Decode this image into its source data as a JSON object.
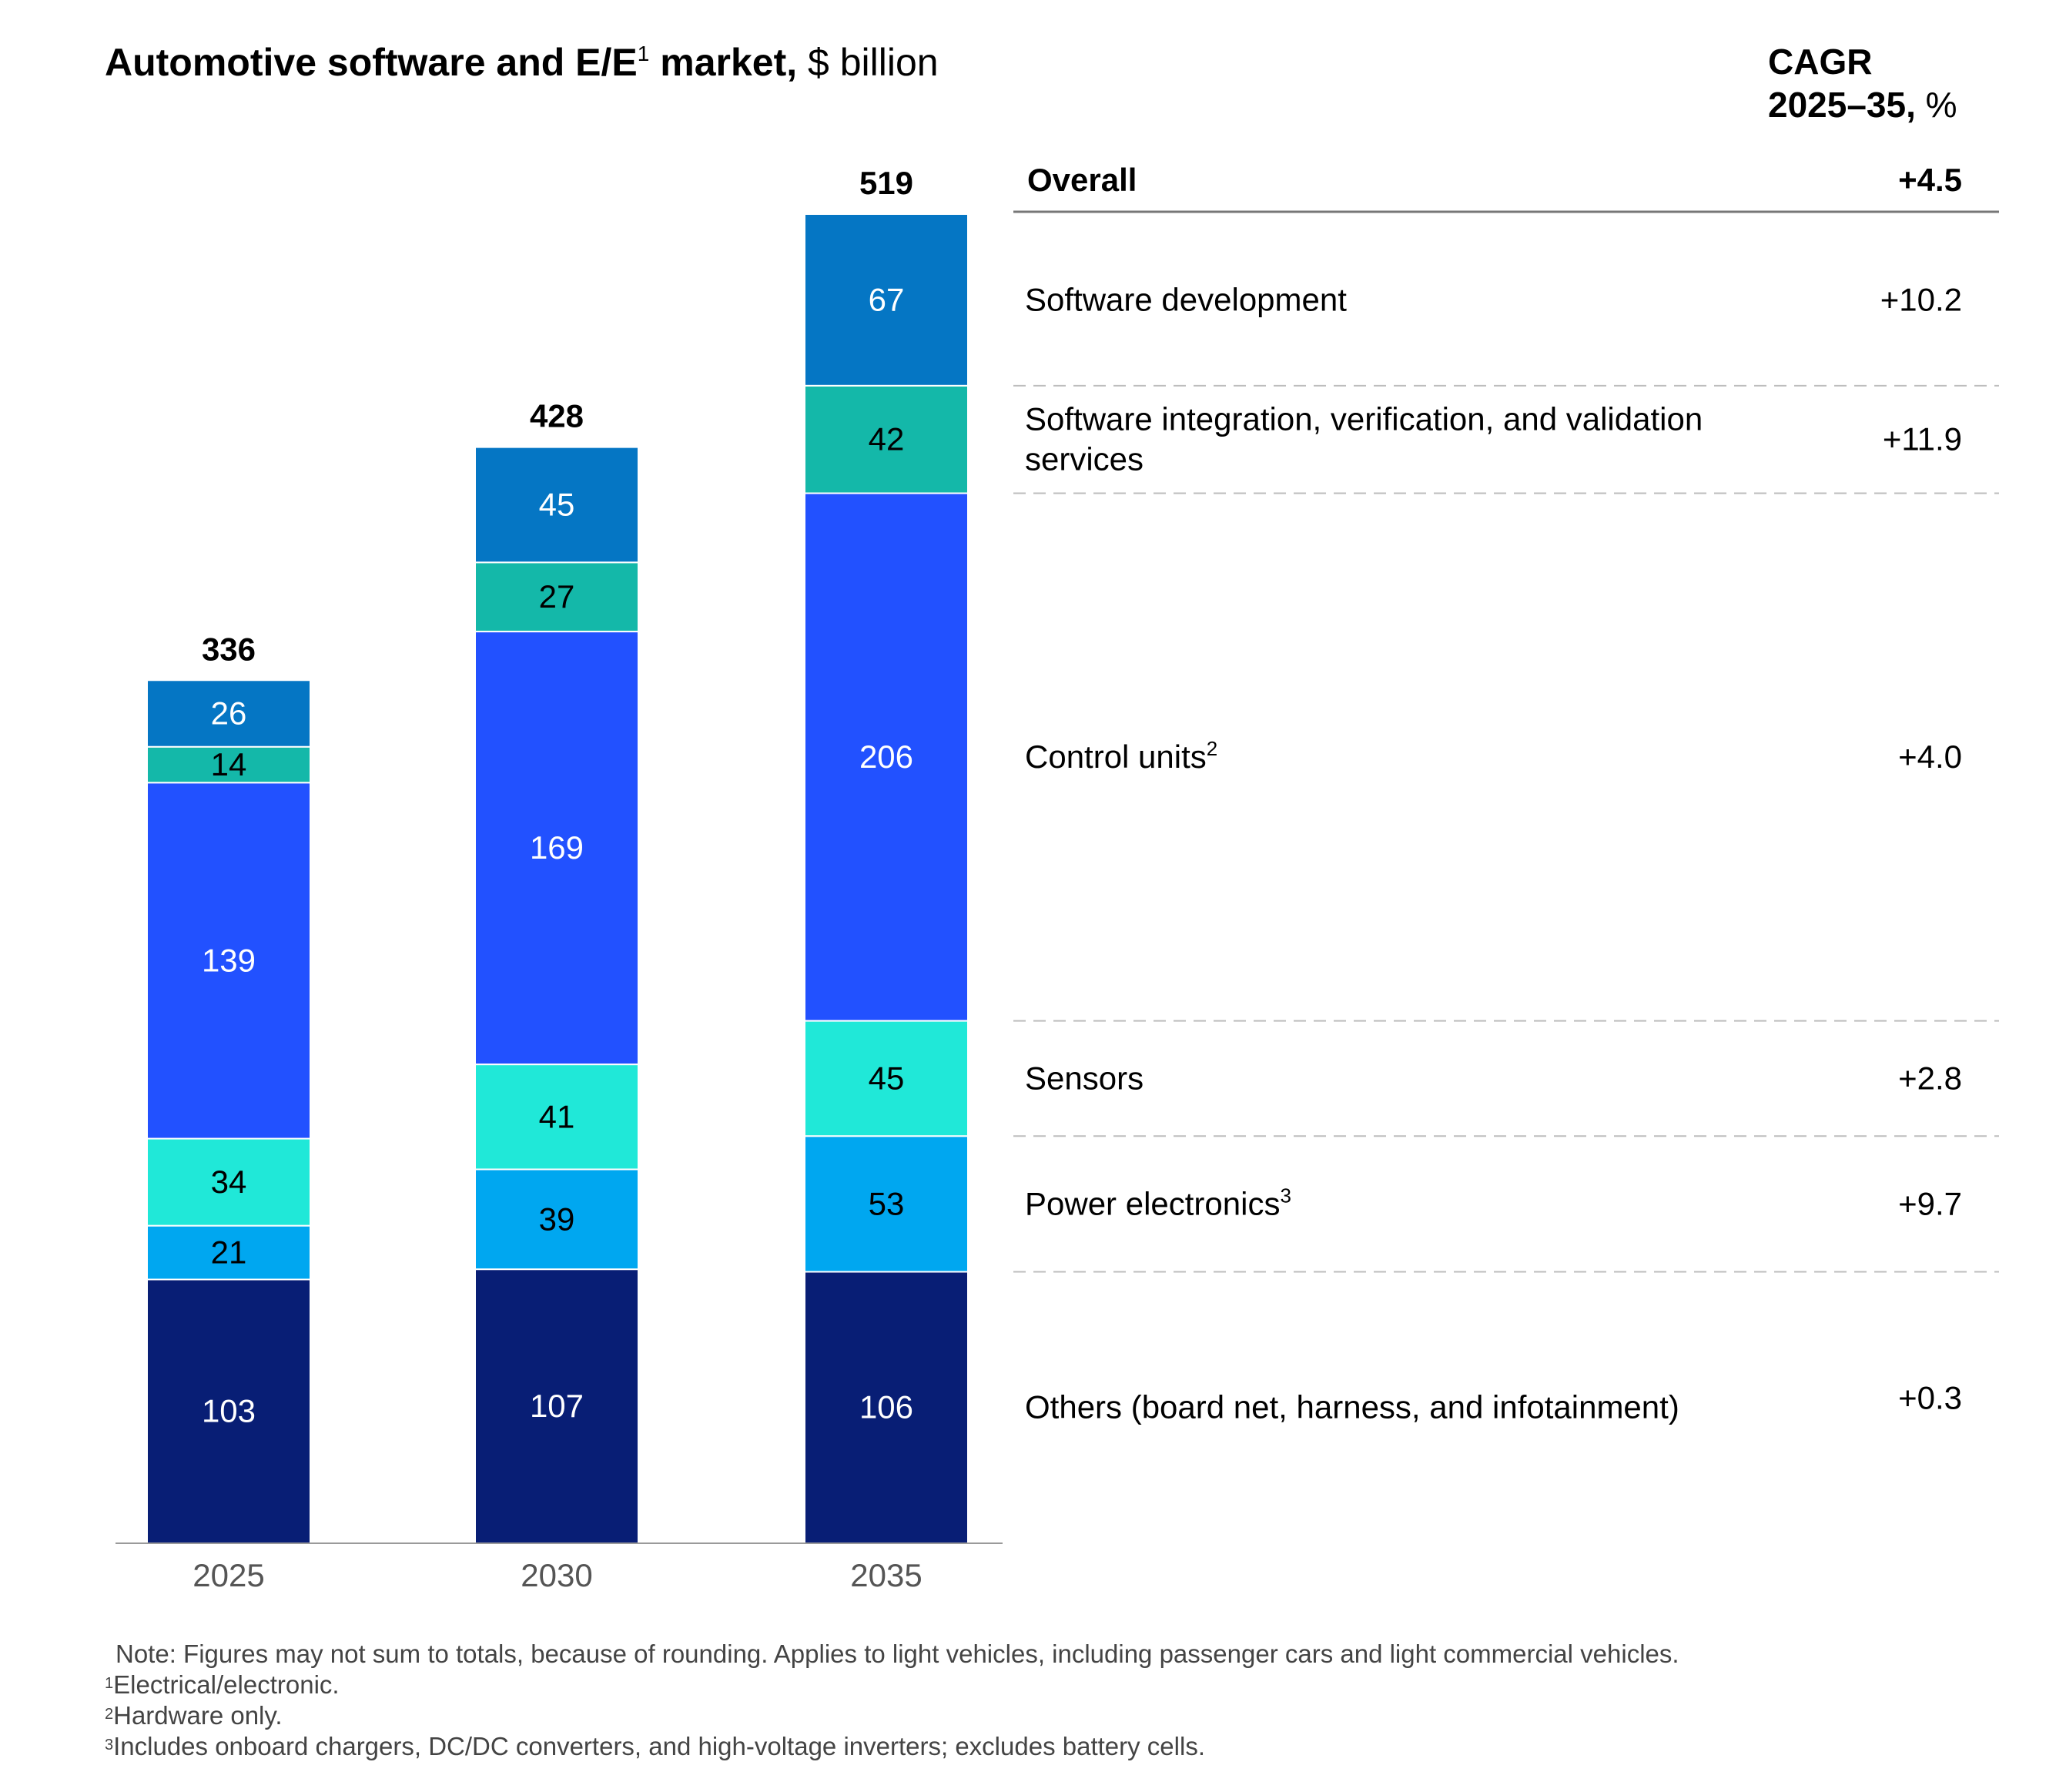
{
  "title": {
    "bold": "Automotive software and E/E",
    "sup": "1",
    "bold_suffix": " market,",
    "unit": " $ billion"
  },
  "cagr_header": {
    "line1": "CAGR",
    "line2_bold": "2025–35,",
    "line2_unit": " %"
  },
  "chart_data": {
    "type": "bar",
    "stacked": true,
    "categories": [
      "2025",
      "2030",
      "2035"
    ],
    "totals": [
      "336",
      "428",
      "519"
    ],
    "series": [
      {
        "name": "Others (board net, harness, and infotainment)",
        "values": [
          103,
          107,
          106
        ],
        "color": "#081E75",
        "label_color": "#ffffff"
      },
      {
        "name": "Power electronics",
        "values": [
          21,
          39,
          53
        ],
        "color": "#00A7F0",
        "label_color": "#000000"
      },
      {
        "name": "Sensors",
        "values": [
          34,
          41,
          45
        ],
        "color": "#20E8D8",
        "label_color": "#000000"
      },
      {
        "name": "Control units",
        "values": [
          139,
          169,
          206
        ],
        "color": "#2251FF",
        "label_color": "#ffffff"
      },
      {
        "name": "Software integration, verification, and validation services",
        "values": [
          14,
          27,
          42
        ],
        "color": "#14B8A9",
        "label_color": "#000000"
      },
      {
        "name": "Software development",
        "values": [
          26,
          45,
          67
        ],
        "color": "#0576C4",
        "label_color": "#ffffff"
      }
    ],
    "ylim": [
      0,
      519
    ],
    "xlabel": "",
    "ylabel": ""
  },
  "legend_rows": [
    {
      "label": "Overall",
      "sup": "",
      "cagr": "+4.5",
      "bold": true
    },
    {
      "label": "Software development",
      "sup": "",
      "cagr": "+10.2",
      "bold": false
    },
    {
      "label": "Software integration, verification, and validation services",
      "sup": "",
      "cagr": "+11.9",
      "bold": false
    },
    {
      "label": "Control units",
      "sup": "2",
      "cagr": "+4.0",
      "bold": false
    },
    {
      "label": "Sensors",
      "sup": "",
      "cagr": "+2.8",
      "bold": false
    },
    {
      "label": "Power electronics",
      "sup": "3",
      "cagr": "+9.7",
      "bold": false
    },
    {
      "label": "Others (board net, harness, and infotainment)",
      "sup": "",
      "cagr": "+0.3",
      "bold": false
    }
  ],
  "notes": {
    "note": "Note: Figures may not sum to totals, because of rounding. Applies to light vehicles, including passenger cars and light commercial vehicles.",
    "footnotes": [
      {
        "sup": "1",
        "text": "Electrical/electronic."
      },
      {
        "sup": "2",
        "text": "Hardware only."
      },
      {
        "sup": "3",
        "text": "Includes onboard chargers, DC/DC converters, and high-voltage inverters; excludes battery cells."
      }
    ]
  }
}
